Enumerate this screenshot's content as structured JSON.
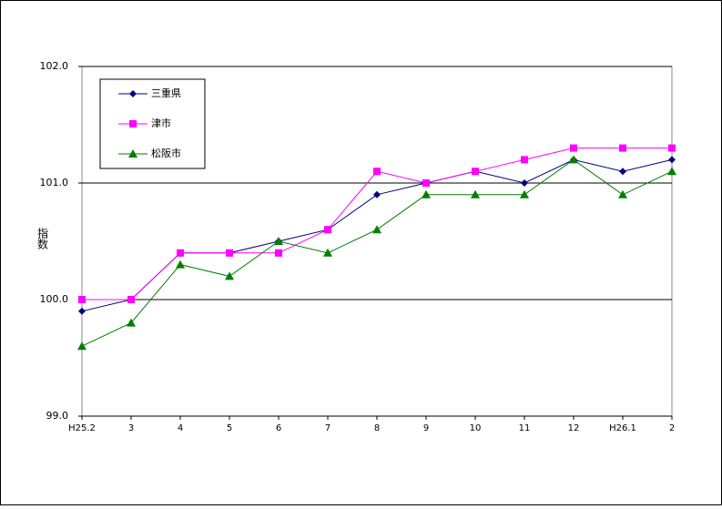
{
  "chart_data": {
    "type": "line",
    "y_label": "指数",
    "categories": [
      "H25.2",
      "3",
      "4",
      "5",
      "6",
      "7",
      "8",
      "9",
      "10",
      "11",
      "12",
      "H26.1",
      "2"
    ],
    "series": [
      {
        "name": "三重県",
        "color": "#000080",
        "marker": "diamond",
        "values": [
          99.9,
          100.0,
          100.4,
          100.4,
          100.5,
          100.6,
          100.9,
          101.0,
          101.1,
          101.0,
          101.2,
          101.1,
          101.2
        ]
      },
      {
        "name": "津市",
        "color": "#ff00ff",
        "marker": "square",
        "values": [
          100.0,
          100.0,
          100.4,
          100.4,
          100.4,
          100.6,
          101.1,
          101.0,
          101.1,
          101.2,
          101.3,
          101.3,
          101.3
        ]
      },
      {
        "name": "松阪市",
        "color": "#008000",
        "marker": "triangle",
        "values": [
          99.6,
          99.8,
          100.3,
          100.2,
          100.5,
          100.4,
          100.6,
          100.9,
          100.9,
          100.9,
          101.2,
          100.9,
          101.1
        ]
      }
    ],
    "ylim": [
      99,
      102
    ],
    "yticks": [
      {
        "value": 99,
        "label": "99.0"
      },
      {
        "value": 100,
        "label": "100.0"
      },
      {
        "value": 101,
        "label": "101.0"
      },
      {
        "value": 102,
        "label": "102.0"
      }
    ],
    "grid": true,
    "legend": "top-left"
  }
}
